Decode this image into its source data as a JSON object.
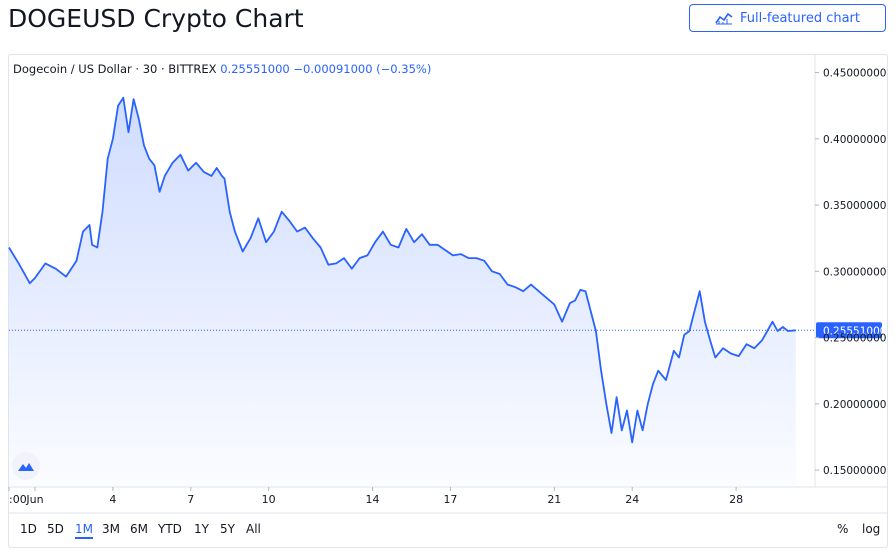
{
  "header": {
    "title": "DOGEUSD Crypto Chart",
    "full_button_label": "Full-featured chart"
  },
  "legend": {
    "symbol": "Dogecoin / US Dollar · 30 · BITTREX",
    "price": "0.25551000",
    "change": "−0.00091000 (−0.35%)"
  },
  "range_buttons": [
    "1D",
    "5D",
    "1M",
    "3M",
    "6M",
    "YTD",
    "1Y",
    "5Y",
    "All"
  ],
  "active_range": "1M",
  "scale_options": {
    "percent": "%",
    "log": "log"
  },
  "colors": {
    "line": "#2962ff",
    "accent": "#2962ff",
    "last_price_bg": "#2962ff"
  },
  "chart_data": {
    "type": "area",
    "title": "DOGEUSD Crypto Chart",
    "series": [
      {
        "name": "Dogecoin / US Dollar",
        "x": [
          -1.0,
          -0.6,
          -0.2,
          0.0,
          0.4,
          0.8,
          1.2,
          1.6,
          1.85,
          2.1,
          2.2,
          2.4,
          2.6,
          2.8,
          3.0,
          3.2,
          3.4,
          3.6,
          3.8,
          4.0,
          4.2,
          4.4,
          4.6,
          4.8,
          5.0,
          5.3,
          5.6,
          5.9,
          6.2,
          6.5,
          6.8,
          7.0,
          7.2,
          7.3,
          7.5,
          7.7,
          8.0,
          8.3,
          8.6,
          8.9,
          9.2,
          9.5,
          9.8,
          10.1,
          10.4,
          10.7,
          11.0,
          11.3,
          11.6,
          11.9,
          12.2,
          12.5,
          12.8,
          13.1,
          13.4,
          13.7,
          14.0,
          14.3,
          14.6,
          14.9,
          15.2,
          15.5,
          15.8,
          16.1,
          16.4,
          16.7,
          17.0,
          17.3,
          17.6,
          17.9,
          18.2,
          18.5,
          18.8,
          19.1,
          19.4,
          19.7,
          20.0,
          20.3,
          20.6,
          20.8,
          21.0,
          21.2,
          21.4,
          21.6,
          21.8,
          22.0,
          22.2,
          22.4,
          22.6,
          22.8,
          23.0,
          23.2,
          23.4,
          23.6,
          23.8,
          24.0,
          24.3,
          24.6,
          24.8,
          25.0,
          25.2,
          25.4,
          25.6,
          25.8,
          26.0,
          26.2,
          26.5,
          26.8,
          27.1,
          27.4,
          27.7,
          28.0,
          28.2,
          28.4,
          28.6,
          28.8,
          29.0,
          29.3
        ],
        "values": [
          0.318,
          0.305,
          0.291,
          0.295,
          0.306,
          0.302,
          0.296,
          0.308,
          0.33,
          0.335,
          0.32,
          0.318,
          0.345,
          0.385,
          0.4,
          0.425,
          0.431,
          0.405,
          0.43,
          0.415,
          0.395,
          0.385,
          0.38,
          0.36,
          0.372,
          0.382,
          0.388,
          0.376,
          0.382,
          0.375,
          0.372,
          0.378,
          0.372,
          0.37,
          0.345,
          0.33,
          0.315,
          0.325,
          0.34,
          0.322,
          0.33,
          0.345,
          0.338,
          0.33,
          0.333,
          0.325,
          0.318,
          0.305,
          0.306,
          0.31,
          0.302,
          0.31,
          0.312,
          0.322,
          0.33,
          0.32,
          0.318,
          0.332,
          0.322,
          0.328,
          0.32,
          0.32,
          0.316,
          0.312,
          0.313,
          0.31,
          0.31,
          0.308,
          0.3,
          0.298,
          0.29,
          0.288,
          0.285,
          0.29,
          0.285,
          0.28,
          0.275,
          0.262,
          0.276,
          0.278,
          0.286,
          0.285,
          0.27,
          0.255,
          0.225,
          0.2,
          0.178,
          0.205,
          0.18,
          0.195,
          0.171,
          0.195,
          0.18,
          0.2,
          0.215,
          0.225,
          0.218,
          0.24,
          0.235,
          0.252,
          0.255,
          0.27,
          0.285,
          0.262,
          0.248,
          0.235,
          0.242,
          0.238,
          0.236,
          0.245,
          0.242,
          0.248,
          0.255,
          0.262,
          0.255,
          0.258,
          0.255,
          0.2555
        ]
      }
    ],
    "x_ticks": [
      {
        "x": -1.0,
        "label": ":00"
      },
      {
        "x": 0,
        "label": "Jun"
      },
      {
        "x": 3,
        "label": "4"
      },
      {
        "x": 6,
        "label": "7"
      },
      {
        "x": 9,
        "label": "10"
      },
      {
        "x": 13,
        "label": "14"
      },
      {
        "x": 16,
        "label": "17"
      },
      {
        "x": 20,
        "label": "21"
      },
      {
        "x": 23,
        "label": "24"
      },
      {
        "x": 27,
        "label": "28"
      }
    ],
    "y_ticks": [
      0.15,
      0.2,
      0.25,
      0.3,
      0.35,
      0.4,
      0.45
    ],
    "y_tick_labels": [
      "0.15000000",
      "0.20000000",
      "0.25000000",
      "0.30000000",
      "0.35000000",
      "0.40000000",
      "0.45000000"
    ],
    "last_price": 0.25551,
    "last_price_label": "0.25551000",
    "xlim": [
      -1.0,
      30.0
    ],
    "ylim": [
      0.138,
      0.4625
    ],
    "grid": false,
    "legend_position": "top-left"
  }
}
